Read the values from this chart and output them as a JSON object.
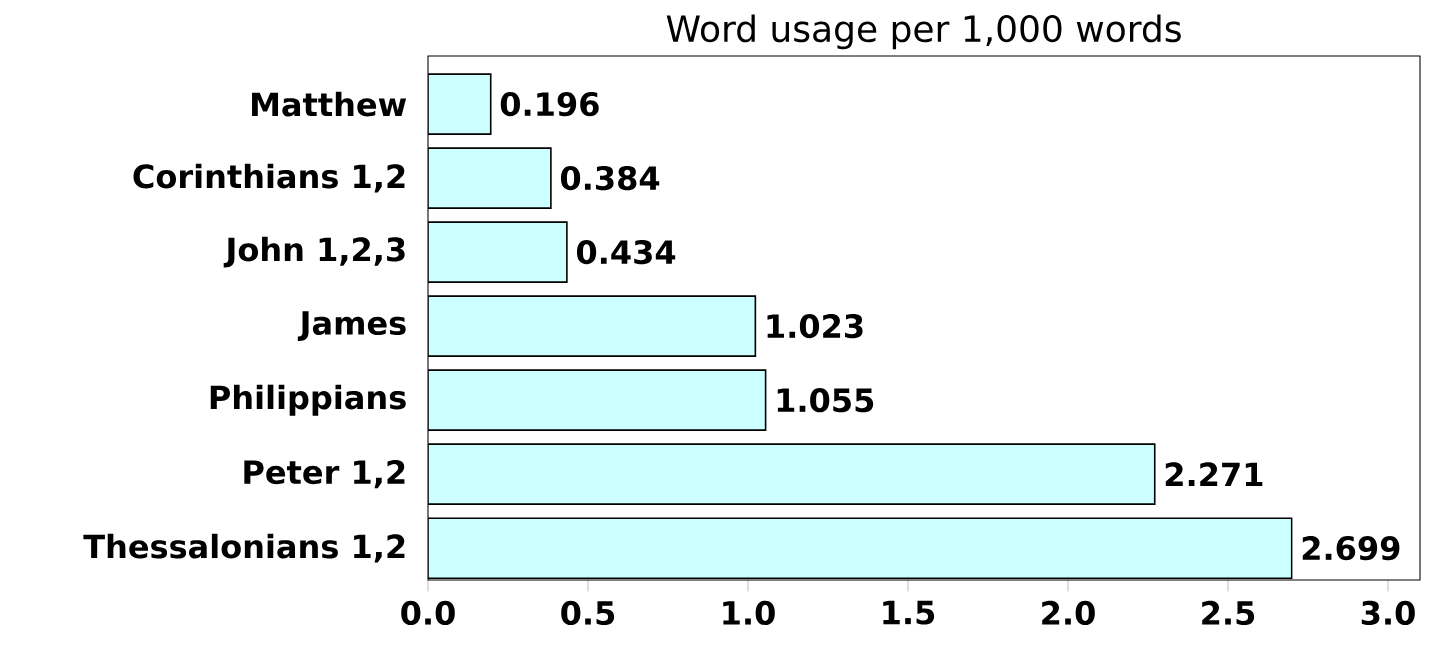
{
  "chart_data": {
    "type": "bar",
    "orientation": "horizontal",
    "title": "Word usage per 1,000 words",
    "categories": [
      "Matthew",
      "Corinthians 1,2",
      "John 1,2,3",
      "James",
      "Philippians",
      "Peter 1,2",
      "Thessalonians 1,2"
    ],
    "values": [
      0.196,
      0.384,
      0.434,
      1.023,
      1.055,
      2.271,
      2.699
    ],
    "color": "#ccffff",
    "xlim": [
      0,
      3.1
    ],
    "xticks": [
      {
        "value": 0,
        "label": "0.0"
      },
      0.5,
      {
        "value": 1,
        "label": "1.0"
      },
      1.5,
      {
        "value": 2,
        "label": "2.0"
      },
      2.5,
      {
        "value": 3,
        "label": "3.0"
      }
    ],
    "data_labels": true
  }
}
